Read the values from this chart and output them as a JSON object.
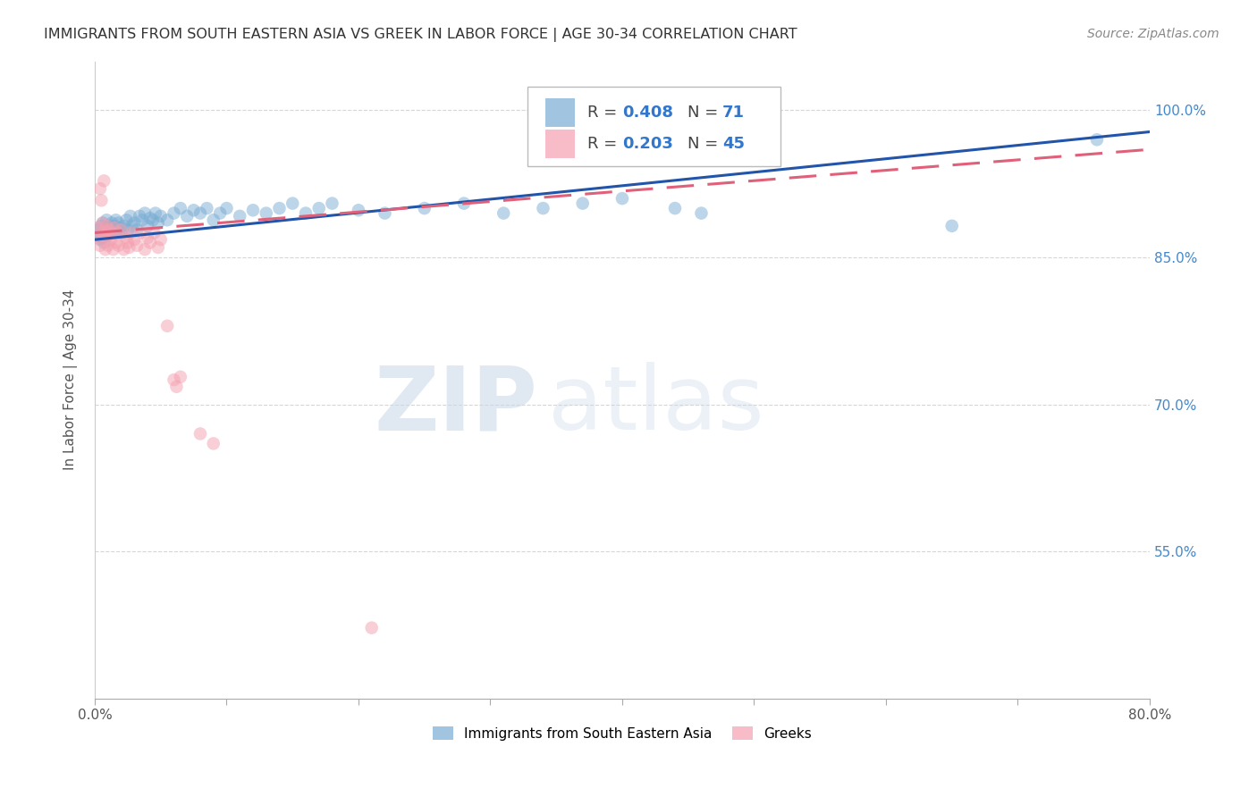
{
  "title": "IMMIGRANTS FROM SOUTH EASTERN ASIA VS GREEK IN LABOR FORCE | AGE 30-34 CORRELATION CHART",
  "source": "Source: ZipAtlas.com",
  "ylabel": "In Labor Force | Age 30-34",
  "xlim": [
    0.0,
    0.8
  ],
  "ylim": [
    0.4,
    1.05
  ],
  "xticks": [
    0.0,
    0.1,
    0.2,
    0.3,
    0.4,
    0.5,
    0.6,
    0.7,
    0.8
  ],
  "ytick_positions": [
    0.55,
    0.7,
    0.85,
    1.0
  ],
  "yticklabels": [
    "55.0%",
    "70.0%",
    "85.0%",
    "100.0%"
  ],
  "grid_color": "#cccccc",
  "background_color": "#ffffff",
  "blue_color": "#7aadd4",
  "pink_color": "#f4a0b0",
  "line_blue": "#2255aa",
  "line_pink": "#e0607a",
  "watermark_zip": "ZIP",
  "watermark_atlas": "atlas",
  "blue_scatter": [
    [
      0.002,
      0.878
    ],
    [
      0.003,
      0.872
    ],
    [
      0.004,
      0.868
    ],
    [
      0.005,
      0.882
    ],
    [
      0.005,
      0.875
    ],
    [
      0.006,
      0.87
    ],
    [
      0.006,
      0.885
    ],
    [
      0.007,
      0.878
    ],
    [
      0.007,
      0.865
    ],
    [
      0.008,
      0.88
    ],
    [
      0.008,
      0.875
    ],
    [
      0.009,
      0.872
    ],
    [
      0.009,
      0.888
    ],
    [
      0.01,
      0.88
    ],
    [
      0.01,
      0.875
    ],
    [
      0.011,
      0.882
    ],
    [
      0.012,
      0.878
    ],
    [
      0.013,
      0.885
    ],
    [
      0.014,
      0.875
    ],
    [
      0.015,
      0.882
    ],
    [
      0.016,
      0.888
    ],
    [
      0.017,
      0.878
    ],
    [
      0.018,
      0.885
    ],
    [
      0.019,
      0.88
    ],
    [
      0.02,
      0.875
    ],
    [
      0.022,
      0.882
    ],
    [
      0.024,
      0.888
    ],
    [
      0.025,
      0.878
    ],
    [
      0.027,
      0.892
    ],
    [
      0.028,
      0.882
    ],
    [
      0.03,
      0.885
    ],
    [
      0.032,
      0.878
    ],
    [
      0.034,
      0.892
    ],
    [
      0.036,
      0.888
    ],
    [
      0.038,
      0.895
    ],
    [
      0.04,
      0.882
    ],
    [
      0.042,
      0.89
    ],
    [
      0.044,
      0.888
    ],
    [
      0.046,
      0.895
    ],
    [
      0.048,
      0.885
    ],
    [
      0.05,
      0.892
    ],
    [
      0.055,
      0.888
    ],
    [
      0.06,
      0.895
    ],
    [
      0.065,
      0.9
    ],
    [
      0.07,
      0.892
    ],
    [
      0.075,
      0.898
    ],
    [
      0.08,
      0.895
    ],
    [
      0.085,
      0.9
    ],
    [
      0.09,
      0.888
    ],
    [
      0.095,
      0.895
    ],
    [
      0.1,
      0.9
    ],
    [
      0.11,
      0.892
    ],
    [
      0.12,
      0.898
    ],
    [
      0.13,
      0.895
    ],
    [
      0.14,
      0.9
    ],
    [
      0.15,
      0.905
    ],
    [
      0.16,
      0.895
    ],
    [
      0.17,
      0.9
    ],
    [
      0.18,
      0.905
    ],
    [
      0.2,
      0.898
    ],
    [
      0.22,
      0.895
    ],
    [
      0.25,
      0.9
    ],
    [
      0.28,
      0.905
    ],
    [
      0.31,
      0.895
    ],
    [
      0.34,
      0.9
    ],
    [
      0.37,
      0.905
    ],
    [
      0.4,
      0.91
    ],
    [
      0.44,
      0.9
    ],
    [
      0.46,
      0.895
    ],
    [
      0.65,
      0.882
    ],
    [
      0.76,
      0.97
    ]
  ],
  "pink_scatter": [
    [
      0.002,
      0.88
    ],
    [
      0.003,
      0.87
    ],
    [
      0.004,
      0.862
    ],
    [
      0.004,
      0.92
    ],
    [
      0.005,
      0.875
    ],
    [
      0.005,
      0.908
    ],
    [
      0.006,
      0.872
    ],
    [
      0.006,
      0.885
    ],
    [
      0.007,
      0.928
    ],
    [
      0.007,
      0.878
    ],
    [
      0.008,
      0.872
    ],
    [
      0.008,
      0.858
    ],
    [
      0.009,
      0.882
    ],
    [
      0.01,
      0.875
    ],
    [
      0.01,
      0.862
    ],
    [
      0.011,
      0.878
    ],
    [
      0.012,
      0.868
    ],
    [
      0.013,
      0.875
    ],
    [
      0.014,
      0.858
    ],
    [
      0.015,
      0.88
    ],
    [
      0.016,
      0.865
    ],
    [
      0.017,
      0.875
    ],
    [
      0.018,
      0.862
    ],
    [
      0.02,
      0.878
    ],
    [
      0.022,
      0.858
    ],
    [
      0.024,
      0.87
    ],
    [
      0.025,
      0.865
    ],
    [
      0.026,
      0.86
    ],
    [
      0.028,
      0.875
    ],
    [
      0.03,
      0.868
    ],
    [
      0.032,
      0.862
    ],
    [
      0.035,
      0.875
    ],
    [
      0.038,
      0.858
    ],
    [
      0.04,
      0.87
    ],
    [
      0.042,
      0.865
    ],
    [
      0.045,
      0.875
    ],
    [
      0.048,
      0.86
    ],
    [
      0.05,
      0.868
    ],
    [
      0.055,
      0.78
    ],
    [
      0.06,
      0.725
    ],
    [
      0.062,
      0.718
    ],
    [
      0.065,
      0.728
    ],
    [
      0.08,
      0.67
    ],
    [
      0.09,
      0.66
    ],
    [
      0.21,
      0.472
    ]
  ],
  "blue_line_fixed": [
    [
      0.0,
      0.868
    ],
    [
      0.8,
      0.978
    ]
  ],
  "pink_line_fixed": [
    [
      0.0,
      0.875
    ],
    [
      0.8,
      0.96
    ]
  ]
}
